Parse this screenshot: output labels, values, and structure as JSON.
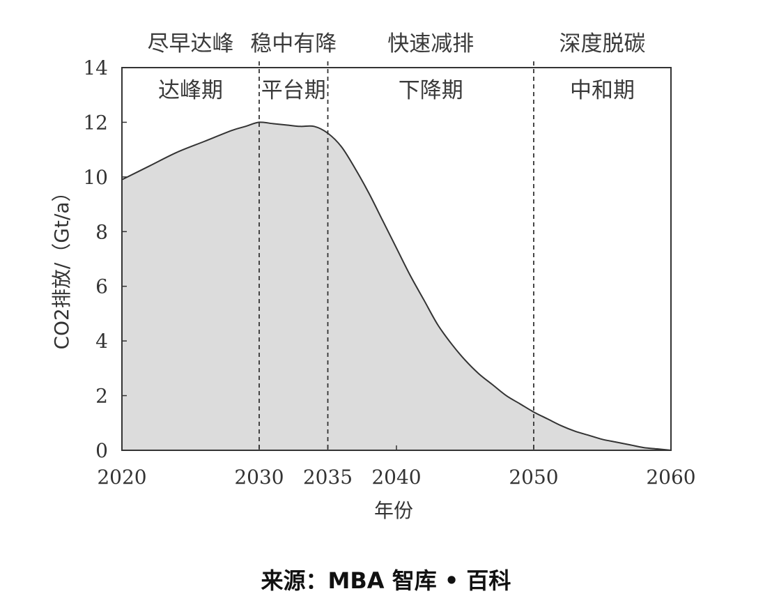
{
  "chart_data": {
    "type": "area",
    "title": "",
    "xlabel": "年份",
    "ylabel": "CO2排放/（Gt/a）",
    "xlim": [
      2020,
      2060
    ],
    "ylim": [
      0,
      14
    ],
    "x_ticks": [
      2020,
      2030,
      2035,
      2040,
      2050,
      2060
    ],
    "y_ticks": [
      0,
      2,
      4,
      6,
      8,
      10,
      12,
      14
    ],
    "grid": false,
    "series": [
      {
        "x": [
          2020,
          2022,
          2024,
          2026,
          2028,
          2029,
          2030,
          2031,
          2032,
          2033,
          2034,
          2035,
          2036,
          2037,
          2038,
          2039,
          2040,
          2041,
          2042,
          2043,
          2044,
          2045,
          2046,
          2047,
          2048,
          2049,
          2050,
          2051,
          2052,
          2053,
          2054,
          2055,
          2056,
          2057,
          2058,
          2059,
          2060
        ],
        "values": [
          9.9,
          10.4,
          10.9,
          11.3,
          11.7,
          11.85,
          12.0,
          11.95,
          11.9,
          11.85,
          11.85,
          11.6,
          11.1,
          10.3,
          9.4,
          8.4,
          7.4,
          6.4,
          5.5,
          4.6,
          3.9,
          3.3,
          2.8,
          2.4,
          2.0,
          1.7,
          1.4,
          1.15,
          0.9,
          0.7,
          0.55,
          0.4,
          0.3,
          0.2,
          0.1,
          0.05,
          0.0
        ]
      }
    ],
    "phase_boundaries": [
      2030,
      2035,
      2050
    ],
    "phases": [
      {
        "top_label": "尽早达峰",
        "inner_label": "达峰期",
        "start": 2020,
        "end": 2030
      },
      {
        "top_label": "稳中有降",
        "inner_label": "平台期",
        "start": 2030,
        "end": 2035
      },
      {
        "top_label": "快速减排",
        "inner_label": "下降期",
        "start": 2035,
        "end": 2050
      },
      {
        "top_label": "深度脱碳",
        "inner_label": "中和期",
        "start": 2050,
        "end": 2060
      }
    ],
    "colors": {
      "area_fill": "#dcdcdc",
      "line": "#333333",
      "axis": "#333333",
      "divider": "#333333"
    }
  },
  "source_note": "来源：MBA 智库 • 百科"
}
